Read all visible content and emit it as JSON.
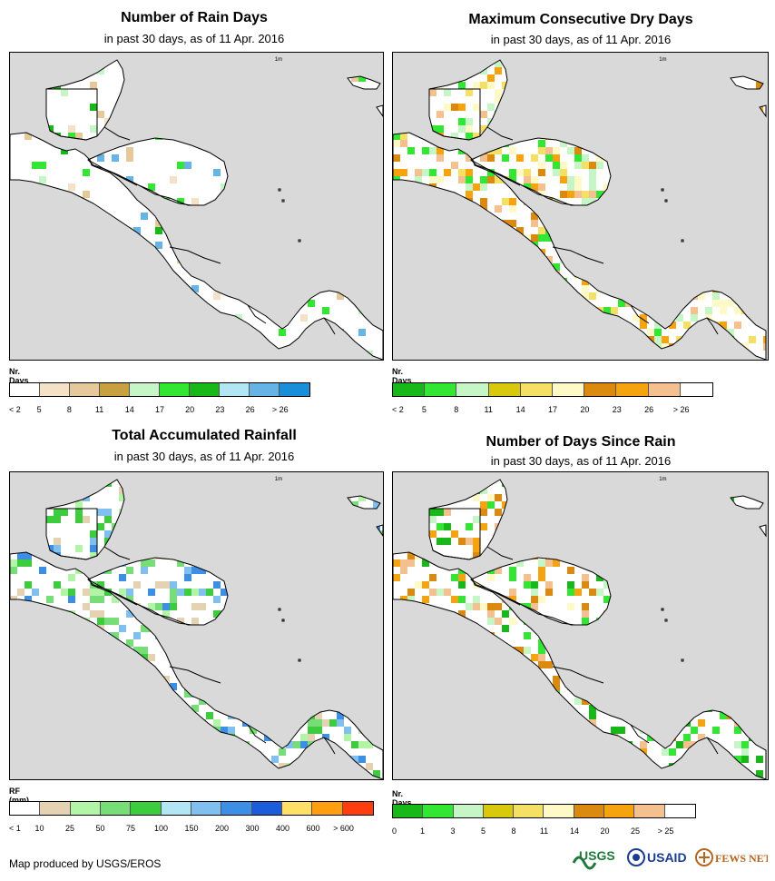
{
  "panels": [
    {
      "id": "rain-days",
      "title": "Number of Rain Days",
      "subtitle": "in past 30 days, as of 11 Apr. 2016",
      "map_label": "1m",
      "legend_title": "Nr. Days",
      "legend_labels": [
        "< 2",
        "5",
        "8",
        "11",
        "14",
        "17",
        "20",
        "23",
        "26",
        "> 26"
      ],
      "legend_colors": [
        "#ffffff",
        "#f5e1c6",
        "#e5c99a",
        "#c8a040",
        "#c6f5c6",
        "#33e633",
        "#17b817",
        "#b3e6f5",
        "#66b3e6",
        "#1a8fd9"
      ]
    },
    {
      "id": "max-dry-days",
      "title": "Maximum Consecutive Dry Days",
      "subtitle": "in past 30 days, as of 11 Apr. 2016",
      "map_label": "1m",
      "legend_title": "Nr. Days",
      "legend_labels": [
        "< 2",
        "5",
        "8",
        "11",
        "14",
        "17",
        "20",
        "23",
        "26",
        "> 26"
      ],
      "legend_colors": [
        "#17b817",
        "#33e633",
        "#c6f5c6",
        "#d9c90d",
        "#f5e066",
        "#fff9c8",
        "#dc8a0f",
        "#f5a30f",
        "#f5c08f",
        "#ffffff"
      ]
    },
    {
      "id": "total-rainfall",
      "title": "Total Accumulated Rainfall",
      "subtitle": "in past 30 days, as of 11 Apr. 2016",
      "map_label": "1m",
      "legend_title": "RF (mm)",
      "legend_labels": [
        "< 1",
        "10",
        "25",
        "50",
        "75",
        "100",
        "150",
        "200",
        "300",
        "400",
        "600",
        "> 600"
      ],
      "legend_colors": [
        "#ffffff",
        "#e5d2b3",
        "#b3f5a6",
        "#77dd77",
        "#3dcc3d",
        "#b3e6f5",
        "#80c0f0",
        "#3d8fe6",
        "#1a5cd9",
        "#ffe066",
        "#ff9f0f",
        "#ff3d0f"
      ]
    },
    {
      "id": "days-since-rain",
      "title": "Number of Days Since Rain",
      "subtitle": "in past 30 days, as of 11 Apr. 2016",
      "map_label": "1m",
      "legend_title": "Nr. Days",
      "legend_labels": [
        "0",
        "1",
        "3",
        "5",
        "8",
        "11",
        "14",
        "20",
        "25",
        "> 25"
      ],
      "legend_colors": [
        "#17b817",
        "#33e633",
        "#c6f5c6",
        "#d9c90d",
        "#f5e066",
        "#fff9c8",
        "#dc8a0f",
        "#f5a30f",
        "#f5c08f",
        "#ffffff"
      ]
    }
  ],
  "footer": {
    "credit": "Map produced by USGS/EROS",
    "logos": [
      "USGS",
      "USAID",
      "FEWS NET"
    ]
  },
  "colors": {
    "map_background": "#d9d9d9",
    "land": "#ffffff",
    "border": "#000000"
  }
}
